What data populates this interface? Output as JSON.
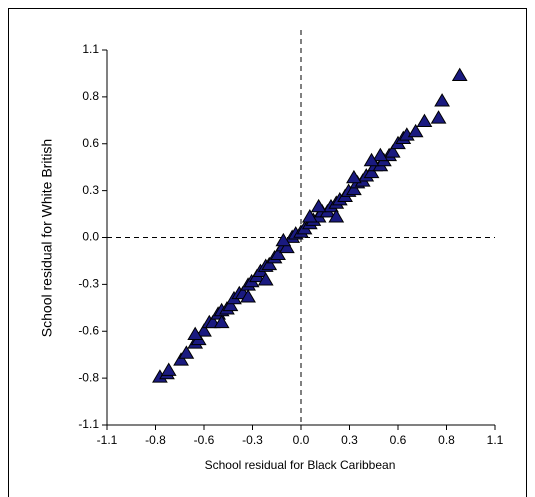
{
  "chart_data": {
    "type": "scatter",
    "xlabel": "School residual for Black Caribbean",
    "ylabel": "School residual for White British",
    "xlim": [
      -1.1,
      1.1
    ],
    "ylim": [
      -1.1,
      1.1
    ],
    "xticks": [
      -1.1,
      {
        "value": -0.825,
        "label": "-0.8"
      },
      {
        "value": -0.55,
        "label": "-0.6"
      },
      {
        "value": -0.275,
        "label": "-0.3"
      },
      {
        "value": 0,
        "label": "0.0"
      },
      {
        "value": 0.275,
        "label": "0.3"
      },
      {
        "value": 0.55,
        "label": "0.6"
      },
      {
        "value": 0.825,
        "label": "0.8"
      },
      1.1
    ],
    "yticks": [
      -1.1,
      {
        "value": -0.825,
        "label": "-0.8"
      },
      {
        "value": -0.55,
        "label": "-0.6"
      },
      {
        "value": -0.275,
        "label": "-0.3"
      },
      {
        "value": 0,
        "label": "0.0"
      },
      {
        "value": 0.275,
        "label": "0.3"
      },
      {
        "value": 0.55,
        "label": "0.6"
      },
      {
        "value": 0.825,
        "label": "0.8"
      },
      1.1
    ],
    "reference_lines": {
      "x": 0,
      "y": 0
    },
    "marker": "triangle",
    "color": "#1a1a80",
    "x": [
      -0.8,
      -0.76,
      -0.75,
      -0.68,
      -0.65,
      -0.6,
      -0.58,
      -0.55,
      -0.52,
      -0.5,
      -0.47,
      -0.45,
      -0.42,
      -0.4,
      -0.38,
      -0.35,
      -0.33,
      -0.3,
      -0.28,
      -0.25,
      -0.23,
      -0.2,
      -0.18,
      -0.15,
      -0.13,
      -0.1,
      -0.08,
      -0.05,
      -0.03,
      0,
      0.02,
      0.05,
      0.07,
      0.1,
      0.12,
      0.15,
      0.17,
      0.2,
      0.22,
      0.25,
      0.27,
      0.3,
      0.32,
      0.35,
      0.37,
      0.4,
      0.42,
      0.45,
      0.47,
      0.5,
      0.52,
      0.55,
      0.58,
      0.6,
      0.65,
      0.7,
      0.78,
      0.8,
      0.9,
      -0.45,
      -0.3,
      -0.2,
      0.1,
      0.3,
      0.45,
      -0.6,
      0.2,
      -0.1,
      0.05,
      0.4
    ],
    "y": [
      -0.82,
      -0.8,
      -0.78,
      -0.72,
      -0.68,
      -0.62,
      -0.6,
      -0.55,
      -0.5,
      -0.5,
      -0.45,
      -0.43,
      -0.42,
      -0.4,
      -0.36,
      -0.33,
      -0.33,
      -0.28,
      -0.26,
      -0.23,
      -0.2,
      -0.17,
      -0.16,
      -0.12,
      -0.1,
      -0.05,
      -0.06,
      0,
      0.02,
      0.03,
      0.05,
      0.08,
      0.1,
      0.12,
      0.15,
      0.15,
      0.18,
      0.2,
      0.22,
      0.24,
      0.27,
      0.28,
      0.32,
      0.33,
      0.36,
      0.38,
      0.42,
      0.42,
      0.45,
      0.48,
      0.5,
      0.55,
      0.58,
      0.6,
      0.62,
      0.68,
      0.7,
      0.8,
      0.95,
      -0.5,
      -0.35,
      -0.25,
      0.18,
      0.35,
      0.48,
      -0.57,
      0.12,
      -0.02,
      0.12,
      0.45
    ]
  }
}
